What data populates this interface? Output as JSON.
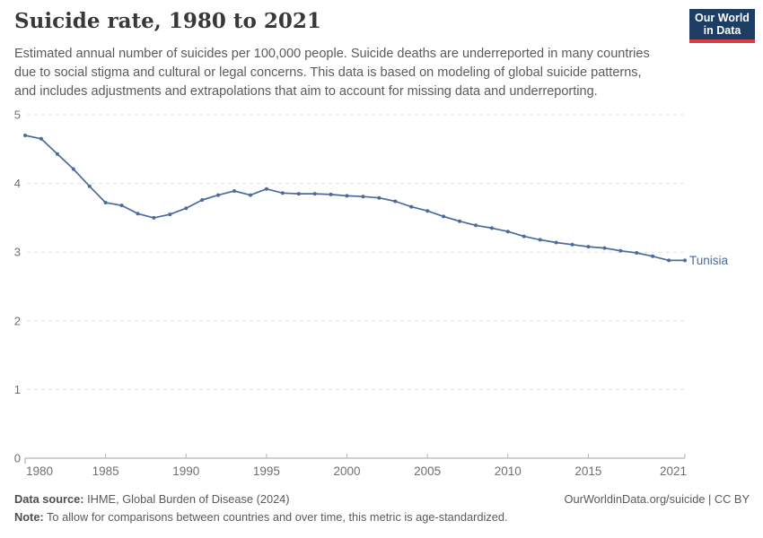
{
  "header": {
    "title": "Suicide rate, 1980 to 2021",
    "subtitle": "Estimated annual number of suicides per 100,000 people. Suicide deaths are underreported in many countries due to social stigma and cultural or legal concerns. This data is based on modeling of global suicide patterns, and includes adjustments and extrapolations that aim to account for missing data and underreporting.",
    "logo": {
      "line1": "Our World",
      "line2": "in Data",
      "bg_color": "#1d3d63",
      "accent_color": "#dc3f42"
    }
  },
  "chart_data": {
    "type": "line",
    "title": "Suicide rate, 1980 to 2021",
    "entity": "Tunisia",
    "line_color": "#4c6a9c",
    "grid": "horizontal dashed",
    "legend_position": "end-of-line label",
    "xlabel": "",
    "ylabel": "",
    "ylim": [
      0,
      5
    ],
    "yticks": [
      0,
      1,
      2,
      3,
      4,
      5
    ],
    "xticks": [
      1980,
      1985,
      1990,
      1995,
      2000,
      2005,
      2010,
      2015,
      2021
    ],
    "x": [
      1980,
      1981,
      1982,
      1983,
      1984,
      1985,
      1986,
      1987,
      1988,
      1989,
      1990,
      1991,
      1992,
      1993,
      1994,
      1995,
      1996,
      1997,
      1998,
      1999,
      2000,
      2001,
      2002,
      2003,
      2004,
      2005,
      2006,
      2007,
      2008,
      2009,
      2010,
      2011,
      2012,
      2013,
      2014,
      2015,
      2016,
      2017,
      2018,
      2019,
      2020,
      2021
    ],
    "values": [
      4.7,
      4.65,
      4.43,
      4.21,
      3.96,
      3.72,
      3.68,
      3.56,
      3.5,
      3.55,
      3.64,
      3.76,
      3.83,
      3.89,
      3.83,
      3.92,
      3.86,
      3.85,
      3.85,
      3.84,
      3.82,
      3.81,
      3.79,
      3.74,
      3.66,
      3.6,
      3.52,
      3.45,
      3.39,
      3.35,
      3.3,
      3.23,
      3.18,
      3.14,
      3.11,
      3.08,
      3.06,
      3.02,
      2.99,
      2.94,
      2.88,
      2.88
    ]
  },
  "footer": {
    "source_label": "Data source:",
    "source_text": " IHME, Global Burden of Disease (2024)",
    "credit": "OurWorldinData.org/suicide | CC BY",
    "note_label": "Note:",
    "note_text": " To allow for comparisons between countries and over time, this metric is age-standardized."
  }
}
